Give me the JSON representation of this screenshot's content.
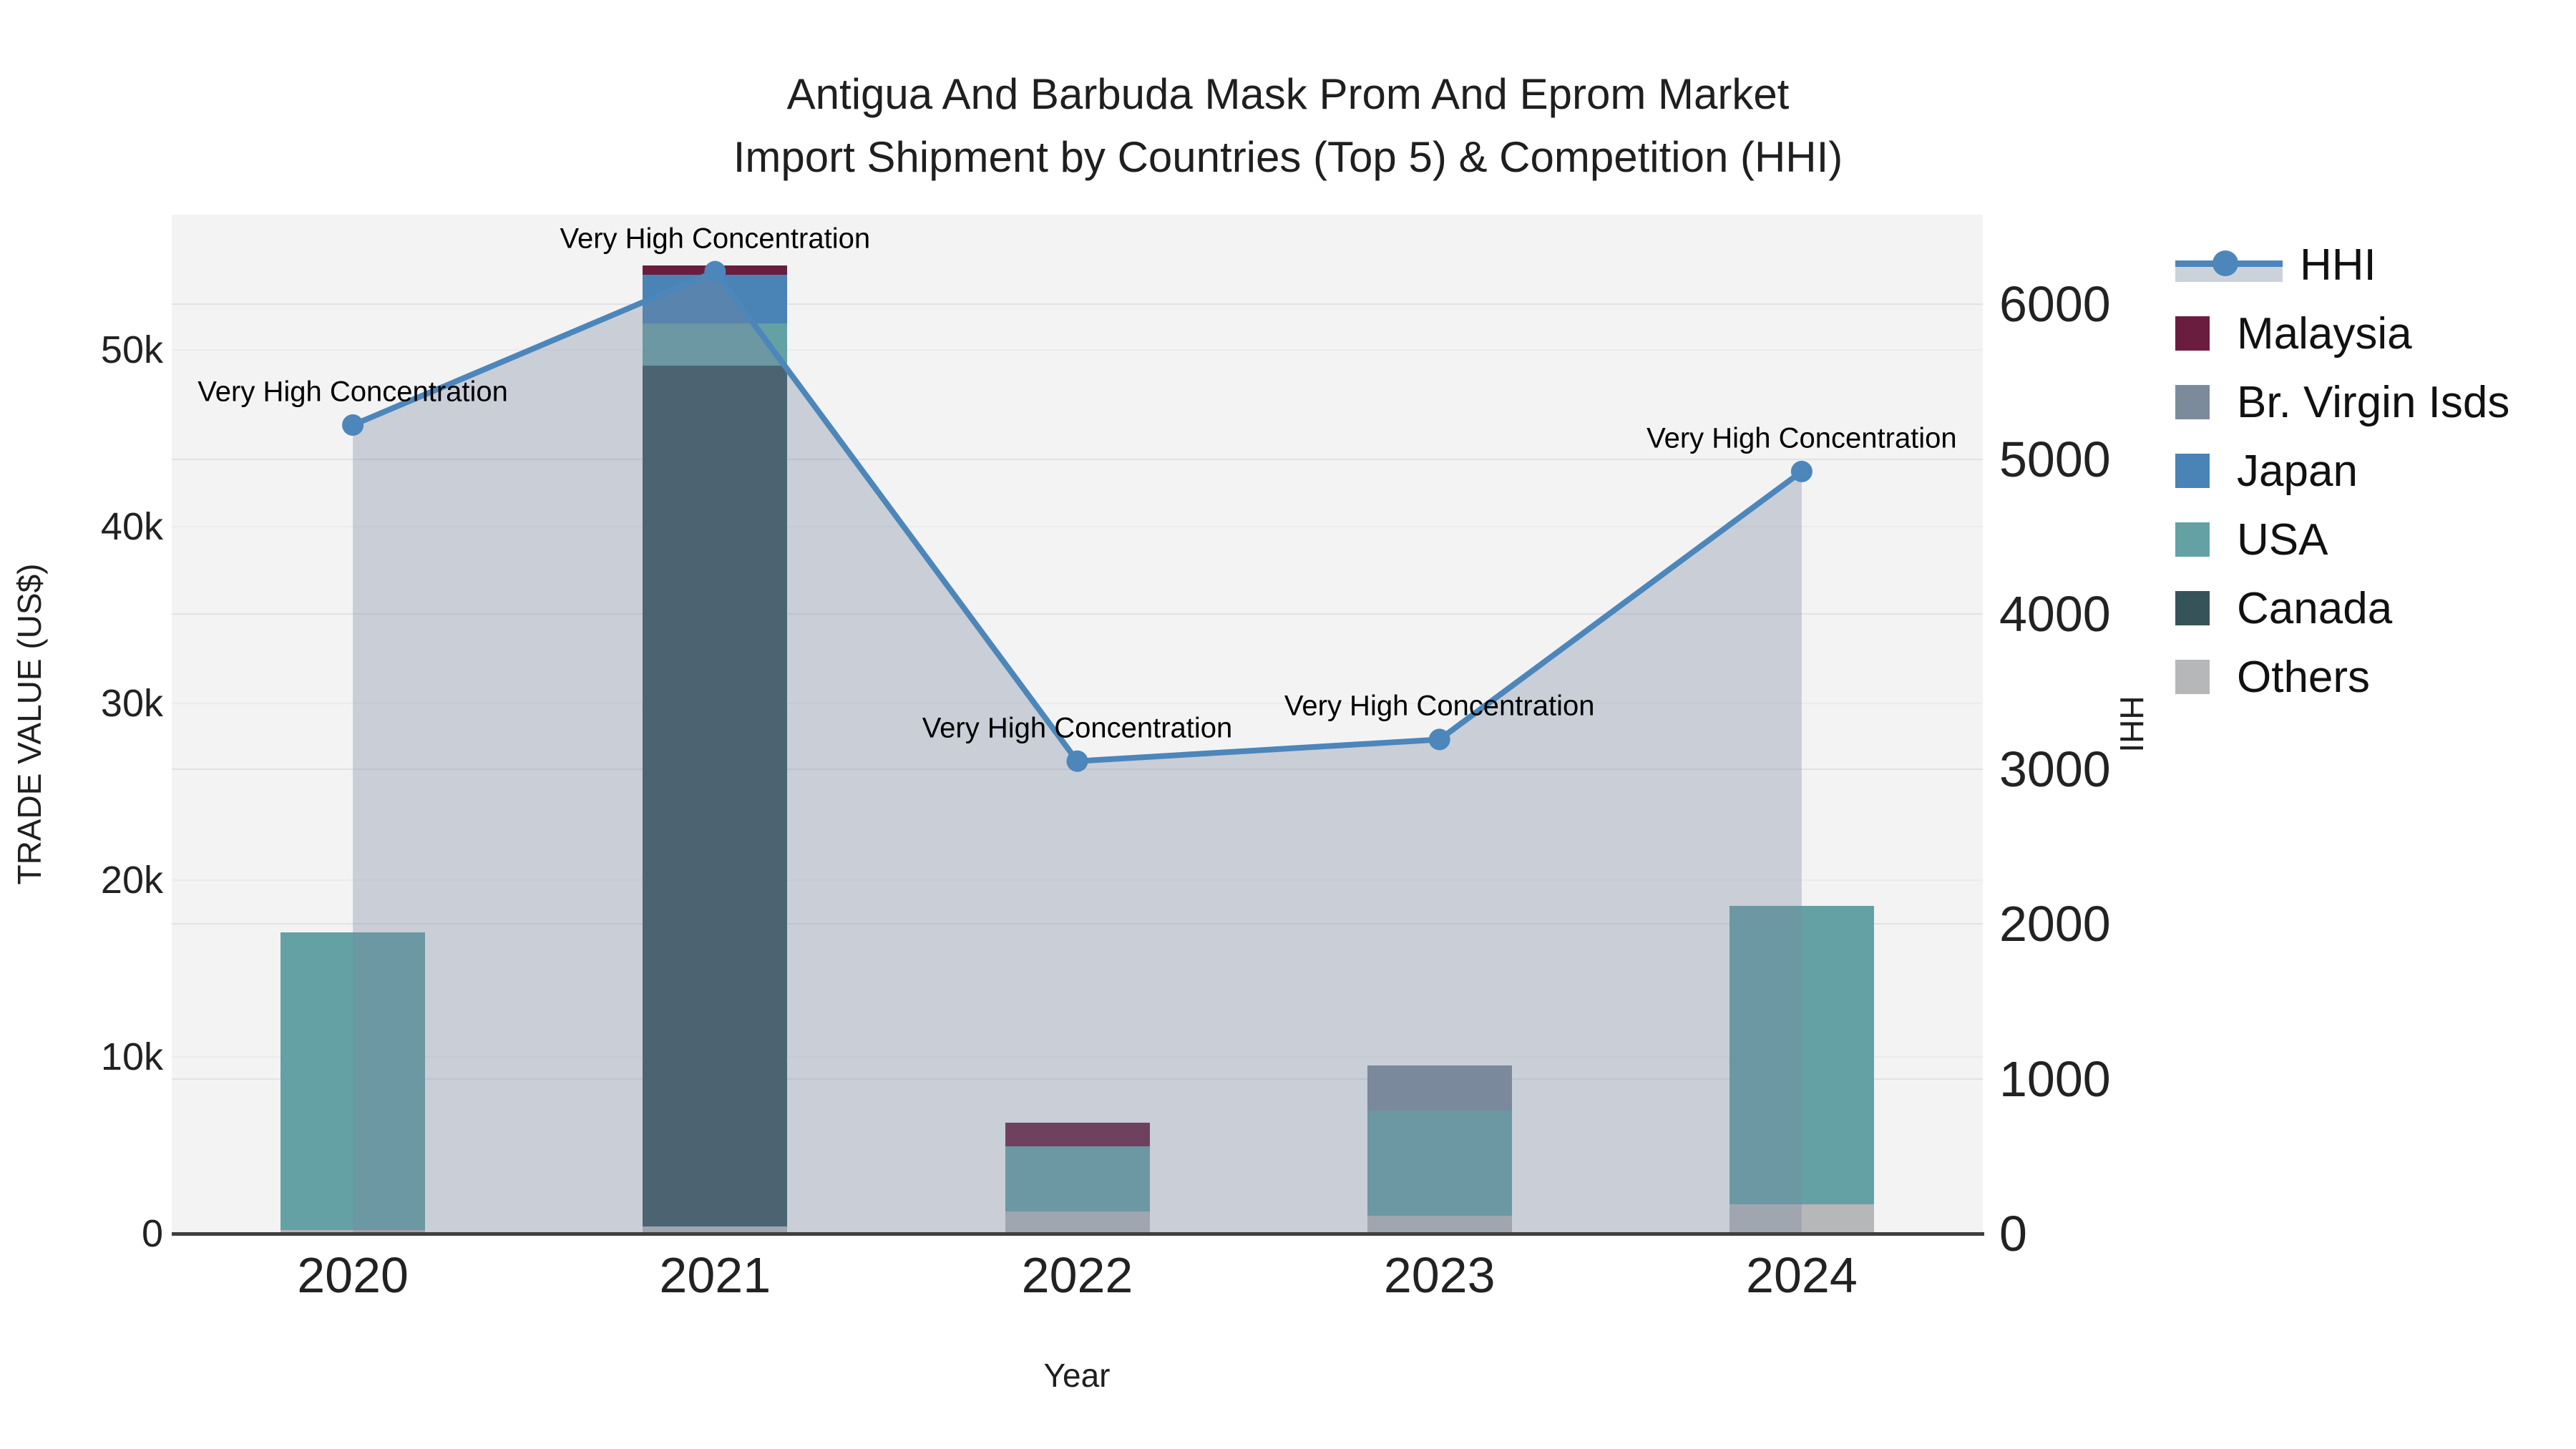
{
  "title": {
    "line1": "Antigua And Barbuda Mask Prom And Eprom Market",
    "line2": "Import Shipment by Countries (Top 5) & Competition (HHI)"
  },
  "axes": {
    "x": {
      "title": "Year",
      "ticks": [
        "2020",
        "2021",
        "2022",
        "2023",
        "2024"
      ]
    },
    "y_left": {
      "title": "TRADE VALUE (US$)",
      "ticks": [
        "0",
        "10k",
        "20k",
        "30k",
        "40k",
        "50k"
      ],
      "tick_values": [
        0,
        10000,
        20000,
        30000,
        40000,
        50000
      ]
    },
    "y_right": {
      "title": "HHI",
      "ticks": [
        "0",
        "1000",
        "2000",
        "3000",
        "4000",
        "5000",
        "6000"
      ],
      "tick_values": [
        0,
        1000,
        2000,
        3000,
        4000,
        5000,
        6000
      ]
    }
  },
  "legend": [
    {
      "label": "HHI",
      "color": "#4c86ba",
      "kind": "line"
    },
    {
      "label": "Malaysia",
      "color": "#6a1d3f",
      "kind": "square"
    },
    {
      "label": "Br. Virgin Isds",
      "color": "#7c8b9c",
      "kind": "square"
    },
    {
      "label": "Japan",
      "color": "#4a83b5",
      "kind": "square"
    },
    {
      "label": "USA",
      "color": "#64a1a4",
      "kind": "square"
    },
    {
      "label": "Canada",
      "color": "#36535a",
      "kind": "square"
    },
    {
      "label": "Others",
      "color": "#b5b7b9",
      "kind": "square"
    }
  ],
  "colors": {
    "plot_background": "#f3f3f4",
    "hhi_line": "#4c86ba",
    "hhi_fill": "rgba(120,134,158,0.34)",
    "axis_line": "#3f3f3f",
    "grid_right": "#e2e2e5",
    "grid_left": "#ebebee"
  },
  "chart_data": {
    "type": "bar",
    "subtype": "stacked bars (left axis) + HHI line with area fill (right axis)",
    "categories": [
      "2020",
      "2021",
      "2022",
      "2023",
      "2024"
    ],
    "stack_order_bottom_to_top": [
      "Others",
      "Canada",
      "USA",
      "Br. Virgin Isds",
      "Japan",
      "Malaysia"
    ],
    "series": [
      {
        "name": "Malaysia",
        "axis": "left",
        "values": [
          0,
          530,
          1330,
          0,
          0
        ]
      },
      {
        "name": "Br. Virgin Isds",
        "axis": "left",
        "values": [
          0,
          0,
          0,
          2550,
          0
        ]
      },
      {
        "name": "Japan",
        "axis": "left",
        "values": [
          0,
          2750,
          0,
          0,
          0
        ]
      },
      {
        "name": "USA",
        "axis": "left",
        "values": [
          16850,
          2400,
          3700,
          5950,
          16900
        ]
      },
      {
        "name": "Canada",
        "axis": "left",
        "values": [
          0,
          48700,
          0,
          0,
          0
        ]
      },
      {
        "name": "Others",
        "axis": "left",
        "values": [
          200,
          400,
          1250,
          1000,
          1650
        ]
      }
    ],
    "hhi": {
      "name": "HHI",
      "axis": "right",
      "values": [
        5220,
        6210,
        3050,
        3190,
        4920
      ]
    },
    "annotations": [
      {
        "x": "2020",
        "text": "Very High Concentration"
      },
      {
        "x": "2021",
        "text": "Very High Concentration"
      },
      {
        "x": "2022",
        "text": "Very High Concentration"
      },
      {
        "x": "2023",
        "text": "Very High Concentration"
      },
      {
        "x": "2024",
        "text": "Very High Concentration"
      }
    ],
    "title": "Antigua And Barbuda Mask Prom And Eprom Market Import Shipment by Countries (Top 5) & Competition (HHI)",
    "xlabel": "Year",
    "ylabel_left": "TRADE VALUE (US$)",
    "ylabel_right": "HHI",
    "ylim_left": [
      0,
      57650
    ],
    "ylim_right": [
      0,
      6578
    ],
    "grid": true,
    "legend_position": "right"
  }
}
